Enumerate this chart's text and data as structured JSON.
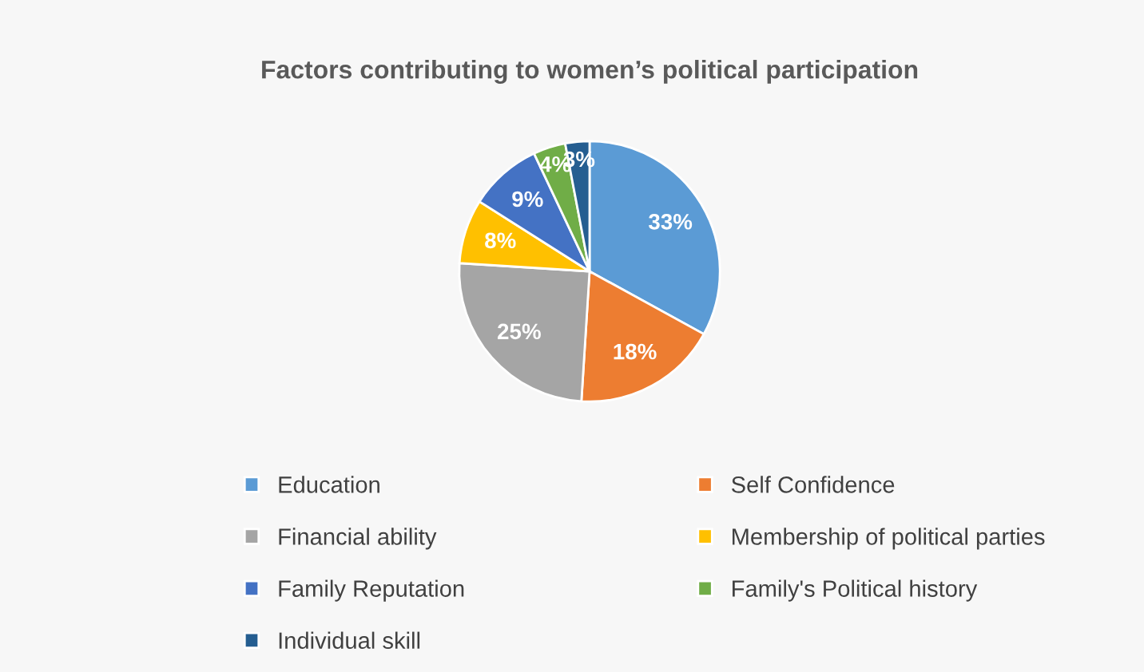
{
  "chart_data": {
    "type": "pie",
    "title": "Factors contributing to women’s political participation",
    "categories": [
      "Education",
      "Self Confidence",
      "Financial ability",
      "Membership of political parties",
      "Family Reputation",
      "Family's Political history",
      "Individual skill"
    ],
    "values": [
      33,
      18,
      25,
      8,
      9,
      4,
      3
    ],
    "colors": [
      "#5b9bd5",
      "#ed7d31",
      "#a5a5a5",
      "#ffc000",
      "#4472c4",
      "#70ad47",
      "#255e91"
    ],
    "value_labels": [
      "33%",
      "18%",
      "25%",
      "8%",
      "9%",
      "4%",
      "3%"
    ],
    "legend": "bottom"
  }
}
